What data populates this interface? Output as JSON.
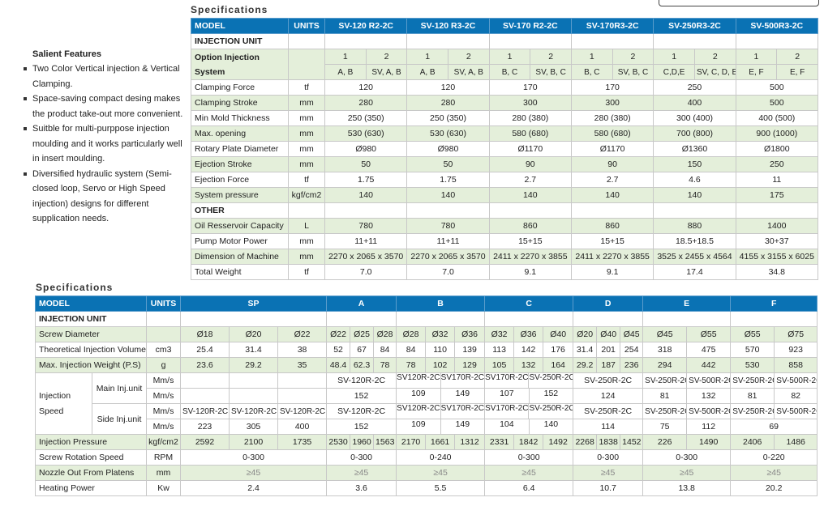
{
  "top_title": "Specifications",
  "bottom_title": "Specifications",
  "features": {
    "heading": "Salient Features",
    "items": [
      "Two Color Vertical injection & Vertical Clamping.",
      "Space-saving compact desing makes the product take-out more convenient.",
      "Suitble for multi-purppose injection moulding and it works particularly well in insert moulding.",
      "Diversified hydraulic system (Semi-closed loop, Servo or High Speed injection) designs for different supplication needs."
    ]
  },
  "colors": {
    "header": "#0a72b4",
    "row_alt": "#e4efda"
  },
  "table1": {
    "model_label": "MODEL",
    "units_label": "UNITS",
    "models": [
      "SV-120 R2-2C",
      "SV-120 R3-2C",
      "SV-170 R2-2C",
      "SV-170R3-2C",
      "SV-250R3-2C",
      "SV-500R3-2C"
    ],
    "injection_unit_label": "INJECTION UNIT",
    "option_label": "Option Injection System",
    "option_numbers": [
      [
        "1",
        "2"
      ],
      [
        "1",
        "2"
      ],
      [
        "1",
        "2"
      ],
      [
        "1",
        "2"
      ],
      [
        "1",
        "2"
      ],
      [
        "1",
        "2"
      ]
    ],
    "option_systems": [
      [
        "A, B",
        "SV, A, B"
      ],
      [
        "A, B",
        "SV, A, B"
      ],
      [
        "B, C",
        "SV, B, C"
      ],
      [
        "B, C",
        "SV, B, C"
      ],
      [
        "C,D,E",
        "SV, C, D, E"
      ],
      [
        "E, F",
        "E, F"
      ]
    ],
    "rows_a": [
      {
        "label": "Clamping Force",
        "unit": "tf",
        "values": [
          "120",
          "120",
          "170",
          "170",
          "250",
          "500"
        ]
      },
      {
        "label": "Clamping Stroke",
        "unit": "mm",
        "values": [
          "280",
          "280",
          "300",
          "300",
          "400",
          "500"
        ]
      },
      {
        "label": "Min Mold Thickness",
        "unit": "mm",
        "values": [
          "250 (350)",
          "250 (350)",
          "280 (380)",
          "280 (380)",
          "300 (400)",
          "400 (500)"
        ]
      },
      {
        "label": "Max. opening",
        "unit": "mm",
        "values": [
          "530 (630)",
          "530 (630)",
          "580 (680)",
          "580 (680)",
          "700 (800)",
          "900 (1000)"
        ]
      },
      {
        "label": "Rotary Plate Diameter",
        "unit": "mm",
        "values": [
          "Ø980",
          "Ø980",
          "Ø1170",
          "Ø1170",
          "Ø1360",
          "Ø1800"
        ]
      },
      {
        "label": "Ejection Stroke",
        "unit": "mm",
        "values": [
          "50",
          "50",
          "90",
          "90",
          "150",
          "250"
        ]
      },
      {
        "label": "Ejection Force",
        "unit": "tf",
        "values": [
          "1.75",
          "1.75",
          "2.7",
          "2.7",
          "4.6",
          "11"
        ]
      },
      {
        "label": "System pressure",
        "unit": "kgf/cm2",
        "values": [
          "140",
          "140",
          "140",
          "140",
          "140",
          "175"
        ]
      }
    ],
    "other_label": "OTHER",
    "rows_b": [
      {
        "label": "Oil Resservoir Capacity",
        "unit": "L",
        "values": [
          "780",
          "780",
          "860",
          "860",
          "880",
          "1400"
        ]
      },
      {
        "label": "Pump Motor Power",
        "unit": "mm",
        "values": [
          "11+11",
          "11+11",
          "15+15",
          "15+15",
          "18.5+18.5",
          "30+37"
        ]
      },
      {
        "label": "Dimension of Machine",
        "unit": "mm",
        "values": [
          "2270 x 2065 x 3570",
          "2270 x 2065 x 3570",
          "2411 x 2270 x 3855",
          "2411 x 2270 x 3855",
          "3525 x 2455 x 4564",
          "4155 x 3155 x 6025"
        ]
      },
      {
        "label": "Total Weight",
        "unit": "tf",
        "values": [
          "7.0",
          "7.0",
          "9.1",
          "9.1",
          "17.4",
          "34.8"
        ]
      }
    ]
  },
  "table2": {
    "model_label": "MODEL",
    "units_label": "UNITS",
    "groups": [
      "SP",
      "A",
      "B",
      "C",
      "D",
      "E",
      "F"
    ],
    "injection_unit_label": "INJECTION UNIT",
    "rows": [
      {
        "label": "Screw Diameter",
        "unit": "",
        "cells": [
          [
            "Ø18",
            "Ø20",
            "Ø22"
          ],
          [
            "Ø22",
            "Ø25",
            "Ø28"
          ],
          [
            "Ø28",
            "Ø32",
            "Ø36"
          ],
          [
            "Ø32",
            "Ø36",
            "Ø40"
          ],
          [
            "Ø20",
            "Ø40",
            "Ø45"
          ],
          [
            "Ø45",
            "Ø55"
          ],
          [
            "Ø55",
            "Ø75"
          ]
        ]
      },
      {
        "label": "Theoretical Injection Volume",
        "unit": "cm3",
        "cells": [
          [
            "25.4",
            "31.4",
            "38"
          ],
          [
            "52",
            "67",
            "84"
          ],
          [
            "84",
            "110",
            "139"
          ],
          [
            "113",
            "142",
            "176"
          ],
          [
            "31.4",
            "201",
            "254"
          ],
          [
            "318",
            "475"
          ],
          [
            "570",
            "923"
          ]
        ]
      },
      {
        "label": "Max. Injection Weight (P.S)",
        "unit": "g",
        "cells": [
          [
            "23.6",
            "29.2",
            "35"
          ],
          [
            "48.4",
            "62.3",
            "78"
          ],
          [
            "78",
            "102",
            "129"
          ],
          [
            "105",
            "132",
            "164"
          ],
          [
            "29.2",
            "187",
            "236"
          ],
          [
            "294",
            "442"
          ],
          [
            "530",
            "858"
          ]
        ]
      }
    ],
    "injection_speed": {
      "label": "Injection Speed",
      "main_label": "Main Inj.unit",
      "side_label": "Side Inj.unit",
      "unit": "Mm/s",
      "rows": [
        [
          [
            "",
            "",
            ""
          ],
          [
            "SV-120R-2C"
          ],
          [
            "SV120R-2C",
            "SV170R-2C"
          ],
          [
            "SV170R-2C",
            "SV-250R-2C"
          ],
          [
            "SV-250R-2C"
          ],
          [
            "SV-250R-2C",
            "SV-500R-2C"
          ],
          [
            "SV-250R-2C",
            "SV-500R-2C"
          ]
        ],
        [
          [
            "",
            "",
            ""
          ],
          [
            "152"
          ],
          [
            "109",
            "149"
          ],
          [
            "107",
            "152"
          ],
          [
            "124"
          ],
          [
            "81",
            "132"
          ],
          [
            "81",
            "82"
          ]
        ],
        [
          [
            "SV-120R-2C",
            "SV-120R-2C",
            "SV-120R-2C"
          ],
          [
            "SV-120R-2C"
          ],
          [
            "SV120R-2C",
            "SV170R-2C"
          ],
          [
            "SV170R-2C",
            "SV-250R-2C"
          ],
          [
            "SV-250R-2C"
          ],
          [
            "SV-250R-2C",
            "SV-500R-2C"
          ],
          [
            "SV-250R-2C",
            "SV-500R-2C"
          ]
        ],
        [
          [
            "223",
            "305",
            "400"
          ],
          [
            "152"
          ],
          [
            "109",
            "149"
          ],
          [
            "104",
            "140"
          ],
          [
            "114"
          ],
          [
            "75",
            "112"
          ],
          [
            "69"
          ]
        ]
      ]
    },
    "rows_after": [
      {
        "label": "Injection Pressure",
        "unit": "kgf/cm2",
        "cells": [
          [
            "2592",
            "2100",
            "1735"
          ],
          [
            "2530",
            "1960",
            "1563"
          ],
          [
            "2170",
            "1661",
            "1312"
          ],
          [
            "2331",
            "1842",
            "1492"
          ],
          [
            "2268",
            "1838",
            "1452"
          ],
          [
            "226",
            "1490"
          ],
          [
            "2406",
            "1486"
          ]
        ]
      },
      {
        "label": "Screw Rotation Speed",
        "unit": "RPM",
        "cells": [
          [
            "0-300"
          ],
          [
            "0-300"
          ],
          [
            "0-240"
          ],
          [
            "0-300"
          ],
          [
            "0-300"
          ],
          [
            "0-300"
          ],
          [
            "0-220"
          ]
        ]
      },
      {
        "label": "Nozzle Out From Platens",
        "unit": "mm",
        "cells": [
          [
            "≥45"
          ],
          [
            "≥45"
          ],
          [
            "≥45"
          ],
          [
            "≥45"
          ],
          [
            "≥45"
          ],
          [
            "≥45"
          ],
          [
            "≥45"
          ]
        ]
      },
      {
        "label": "Heating Power",
        "unit": "Kw",
        "cells": [
          [
            "2.4"
          ],
          [
            "3.6"
          ],
          [
            "5.5"
          ],
          [
            "6.4"
          ],
          [
            "10.7"
          ],
          [
            "13.8"
          ],
          [
            "20.2"
          ]
        ]
      }
    ]
  }
}
